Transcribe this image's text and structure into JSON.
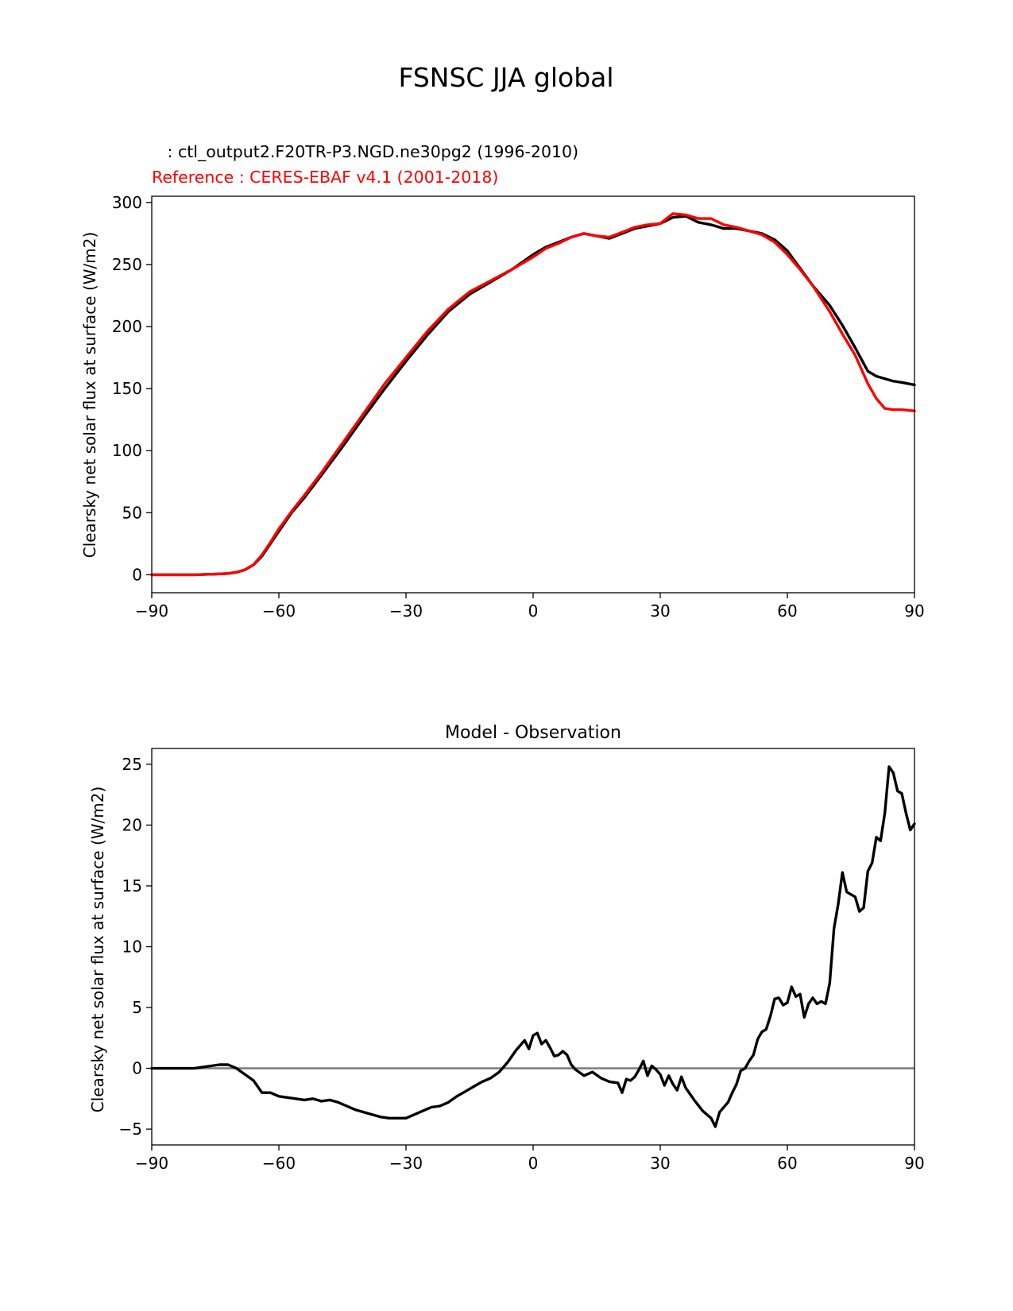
{
  "suptitle": "FSNSC JJA global",
  "charts": [
    {
      "type": "line",
      "test_label": "   : ctl_output2.F20TR-P3.NGD.ne30pg2 (1996-2010)",
      "ref_label": "Reference : CERES-EBAF v4.1 (2001-2018)",
      "ylabel": "Clearsky net solar flux at surface (W/m2)",
      "xlim": [
        -90,
        90
      ],
      "ylim": [
        -14.5,
        305
      ],
      "xticks": [
        -90,
        -60,
        -30,
        0,
        30,
        60,
        90
      ],
      "xtick_labels": [
        "−90",
        "−60",
        "−30",
        "0",
        "30",
        "60",
        "90"
      ],
      "yticks": [
        0,
        50,
        100,
        150,
        200,
        250,
        300
      ],
      "ytick_labels": [
        "0",
        "50",
        "100",
        "150",
        "200",
        "250",
        "300"
      ],
      "series": [
        {
          "color": "#000000",
          "x": [
            -90,
            -85,
            -80,
            -75,
            -72,
            -70,
            -68,
            -66,
            -64,
            -62,
            -60,
            -57,
            -54,
            -50,
            -45,
            -40,
            -35,
            -30,
            -25,
            -20,
            -15,
            -10,
            -5,
            0,
            3,
            6,
            9,
            12,
            15,
            18,
            21,
            24,
            27,
            30,
            33,
            36,
            39,
            42,
            45,
            48,
            51,
            54,
            57,
            60,
            63,
            66,
            70,
            73,
            76,
            79,
            81,
            83,
            85,
            87,
            90
          ],
          "y": [
            0,
            0,
            0,
            0.5,
            1,
            2,
            4,
            8,
            15,
            25,
            35,
            50,
            62,
            80,
            103,
            127,
            150,
            172,
            193,
            212,
            226,
            236,
            246,
            258,
            264,
            268,
            272,
            275,
            273,
            271,
            275,
            279,
            281,
            283,
            288,
            289,
            284,
            282,
            279,
            279,
            277,
            275,
            270,
            261,
            247,
            233,
            217,
            201,
            183,
            164,
            160,
            158,
            156,
            155,
            153
          ]
        },
        {
          "color": "#ff0000",
          "x": [
            -90,
            -85,
            -80,
            -75,
            -72,
            -70,
            -68,
            -66,
            -64,
            -62,
            -60,
            -57,
            -54,
            -50,
            -45,
            -40,
            -35,
            -30,
            -25,
            -20,
            -15,
            -10,
            -5,
            0,
            3,
            6,
            9,
            12,
            15,
            18,
            21,
            24,
            27,
            30,
            33,
            36,
            39,
            42,
            45,
            48,
            51,
            54,
            57,
            60,
            63,
            66,
            70,
            73,
            76,
            79,
            81,
            83,
            85,
            87,
            90
          ],
          "y": [
            0,
            0,
            0,
            0.5,
            1,
            2,
            4,
            8,
            16,
            26,
            37,
            51,
            64,
            82,
            106,
            130,
            154,
            175,
            196,
            214,
            228,
            237,
            246,
            256,
            263,
            267,
            272,
            275,
            273,
            272,
            276,
            280,
            282,
            283,
            291,
            290,
            287,
            287,
            282,
            280,
            277,
            274,
            268,
            258,
            246,
            233,
            212,
            194,
            177,
            154,
            142,
            134,
            133,
            133,
            132
          ]
        }
      ]
    },
    {
      "type": "line",
      "title": "Model - Observation",
      "ylabel": "Clearsky net solar flux at surface (W/m2)",
      "xlim": [
        -90,
        90
      ],
      "ylim": [
        -6.3,
        26.3
      ],
      "xticks": [
        -90,
        -60,
        -30,
        0,
        30,
        60,
        90
      ],
      "xtick_labels": [
        "−90",
        "−60",
        "−30",
        "0",
        "30",
        "60",
        "90"
      ],
      "yticks": [
        -5,
        0,
        5,
        10,
        15,
        20,
        25
      ],
      "ytick_labels": [
        "−5",
        "0",
        "5",
        "10",
        "15",
        "20",
        "25"
      ],
      "zero_line": {
        "value": 0,
        "color": "#808080"
      },
      "series": [
        {
          "color": "#000000",
          "x": [
            -90,
            -85,
            -80,
            -78,
            -76,
            -74,
            -72,
            -70,
            -68,
            -66,
            -64,
            -62,
            -60,
            -58,
            -56,
            -54,
            -52,
            -50,
            -48,
            -46,
            -44,
            -42,
            -40,
            -38,
            -36,
            -34,
            -32,
            -30,
            -28,
            -26,
            -24,
            -22,
            -20,
            -18,
            -16,
            -14,
            -12,
            -10,
            -8,
            -6,
            -4,
            -2,
            -1,
            0,
            1,
            2,
            3,
            4,
            5,
            6,
            7,
            8,
            9,
            10,
            12,
            14,
            16,
            18,
            20,
            21,
            22,
            23,
            24,
            25,
            26,
            27,
            28,
            29,
            30,
            31,
            32,
            33,
            34,
            35,
            36,
            38,
            40,
            42,
            43,
            44,
            45,
            46,
            47,
            48,
            49,
            50,
            51,
            52,
            53,
            54,
            55,
            56,
            57,
            58,
            59,
            60,
            61,
            62,
            63,
            64,
            65,
            66,
            67,
            68,
            69,
            70,
            71,
            72,
            73,
            74,
            75,
            76,
            77,
            78,
            79,
            80,
            81,
            82,
            83,
            84,
            85,
            86,
            87,
            88,
            89,
            90
          ],
          "y": [
            0,
            0,
            0,
            0.1,
            0.2,
            0.3,
            0.3,
            0,
            -0.5,
            -1,
            -2,
            -2,
            -2.3,
            -2.4,
            -2.5,
            -2.6,
            -2.5,
            -2.7,
            -2.6,
            -2.8,
            -3.1,
            -3.4,
            -3.6,
            -3.8,
            -4.0,
            -4.1,
            -4.1,
            -4.1,
            -3.8,
            -3.5,
            -3.2,
            -3.1,
            -2.8,
            -2.3,
            -1.9,
            -1.5,
            -1.1,
            -0.8,
            -0.3,
            0.5,
            1.5,
            2.3,
            1.6,
            2.7,
            2.9,
            2.0,
            2.3,
            1.7,
            1.0,
            1.1,
            1.4,
            1.1,
            0.3,
            -0.1,
            -0.6,
            -0.3,
            -0.8,
            -1.1,
            -1.2,
            -2.0,
            -0.9,
            -1.0,
            -0.7,
            -0.1,
            0.6,
            -0.6,
            0.2,
            -0.1,
            -0.5,
            -1.4,
            -0.6,
            -1.3,
            -1.8,
            -0.7,
            -1.6,
            -2.6,
            -3.5,
            -4.1,
            -4.8,
            -3.6,
            -3.2,
            -2.8,
            -2.0,
            -1.3,
            -0.2,
            0,
            0.6,
            1.1,
            2.4,
            3.0,
            3.2,
            4.3,
            5.7,
            5.8,
            5.2,
            5.4,
            6.7,
            5.9,
            6.1,
            4.2,
            5.3,
            5.8,
            5.3,
            5.5,
            5.3,
            7.0,
            11.5,
            13.5,
            16.1,
            14.5,
            14.3,
            14.1,
            12.9,
            13.2,
            16.2,
            16.9,
            19.0,
            18.7,
            21.0,
            24.8,
            24.3,
            22.8,
            22.6,
            21.0,
            19.6,
            20.1
          ]
        }
      ]
    }
  ]
}
